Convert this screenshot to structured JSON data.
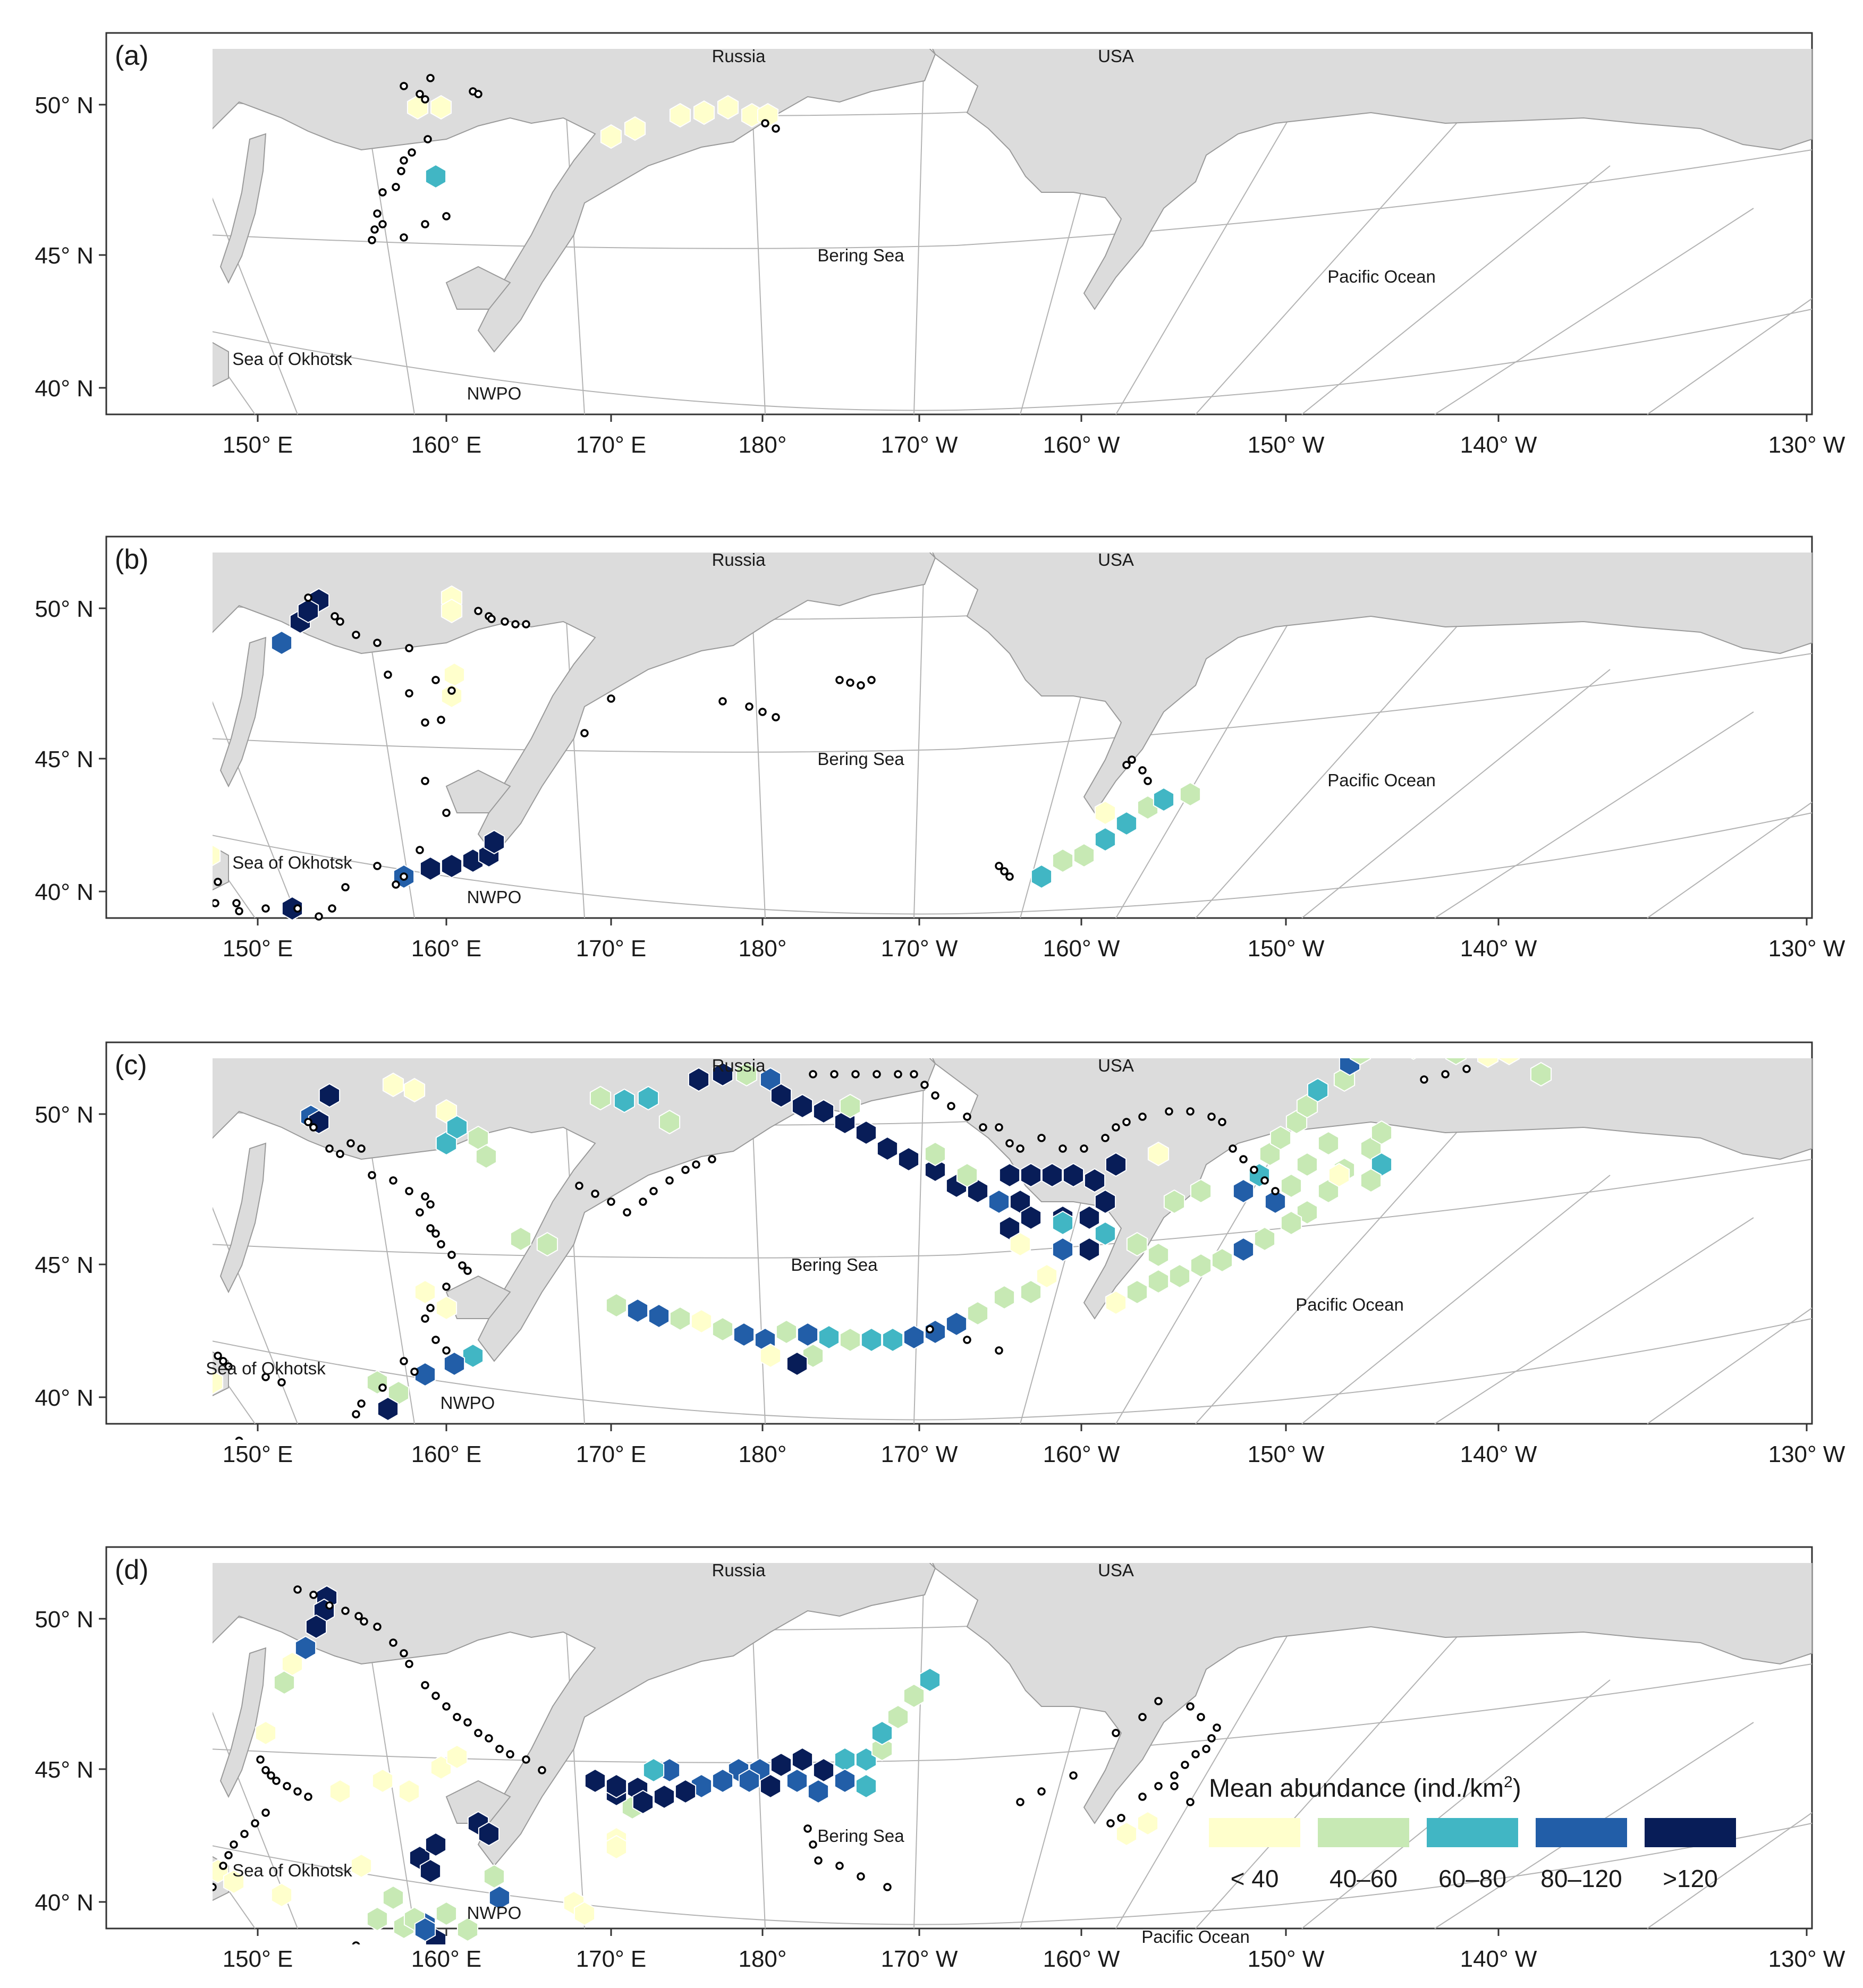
{
  "figure": {
    "panels": [
      {
        "tag": "(a)"
      },
      {
        "tag": "(b)"
      },
      {
        "tag": "(c)"
      },
      {
        "tag": "(d)"
      }
    ],
    "lat_labels": [
      "50° N",
      "45° N",
      "40° N"
    ],
    "lon_labels": [
      "150° E",
      "160° E",
      "170° E",
      "180°",
      "170° W",
      "160° W",
      "150° W",
      "140° W",
      "130° W"
    ],
    "place_names": {
      "russia": "Russia",
      "usa": "USA",
      "bering_sea": "Bering Sea",
      "pacific_ocean": "Pacific Ocean",
      "sea_of_okhotsk": "Sea of Okhotsk",
      "nwpo": "NWPO"
    },
    "legend": {
      "title_prefix": "Mean abundance (ind./km",
      "title_sup": "2",
      "title_suffix": ")",
      "classes": [
        {
          "label": "< 40",
          "color": "#ffffcc"
        },
        {
          "label": "40–60",
          "color": "#c7e9b4"
        },
        {
          "label": "60–80",
          "color": "#41b6c4"
        },
        {
          "label": "80–120",
          "color": "#225ea8"
        },
        {
          "label": ">120",
          "color": "#081d58"
        }
      ]
    },
    "colors": {
      "land": "#dcdcdc",
      "graticule": "#b3b3b3",
      "station_fill": "#ffffff",
      "station_stroke": "#000000"
    },
    "icons": [
      "station-marker-icon",
      "hex-grid-cell-icon"
    ]
  }
}
